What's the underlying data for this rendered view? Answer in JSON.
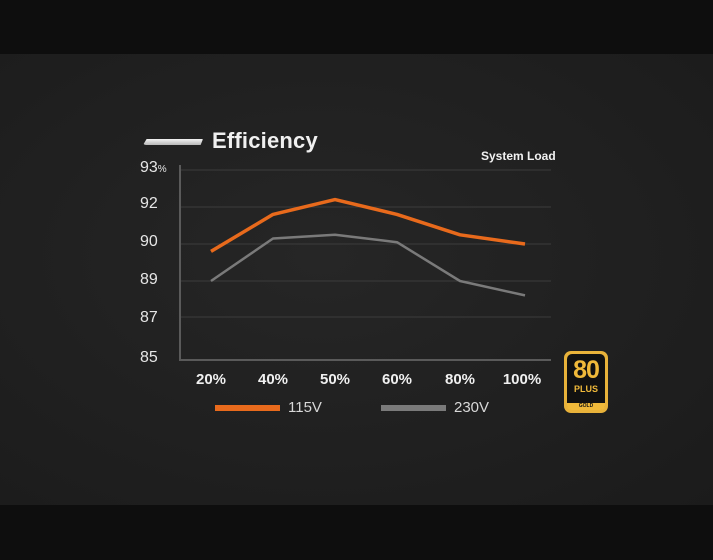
{
  "chart_data": {
    "type": "line",
    "title": "Efficiency",
    "xlabel": "System Load",
    "ylabel": "%",
    "categories": [
      "20%",
      "40%",
      "50%",
      "60%",
      "80%",
      "100%"
    ],
    "y_ticks": [
      "93",
      "92",
      "90",
      "89",
      "87",
      "85"
    ],
    "y_unit": "%",
    "series": [
      {
        "name": "115V",
        "color": "#e86a1c",
        "values": [
          89.8,
          91.6,
          92.2,
          91.6,
          90.5,
          90.0
        ]
      },
      {
        "name": "230V",
        "color": "#7a7a7a",
        "values": [
          89.0,
          90.3,
          90.5,
          90.1,
          89.0,
          88.2
        ]
      }
    ],
    "grid": true,
    "legend_position": "bottom"
  },
  "header": {
    "title": "Efficiency",
    "axis_title": "System Load"
  },
  "yaxis": {
    "ticks": [
      "93",
      "92",
      "90",
      "89",
      "87",
      "85"
    ],
    "unit": "%"
  },
  "xaxis": {
    "ticks": [
      "20%",
      "40%",
      "50%",
      "60%",
      "80%",
      "100%"
    ]
  },
  "legend": [
    {
      "label": "115V",
      "color": "#e86a1c"
    },
    {
      "label": "230V",
      "color": "#7a7a7a"
    }
  ],
  "badge": {
    "number": "80",
    "plus": "PLUS",
    "tier": "GOLD",
    "color": "#e8b23a"
  }
}
